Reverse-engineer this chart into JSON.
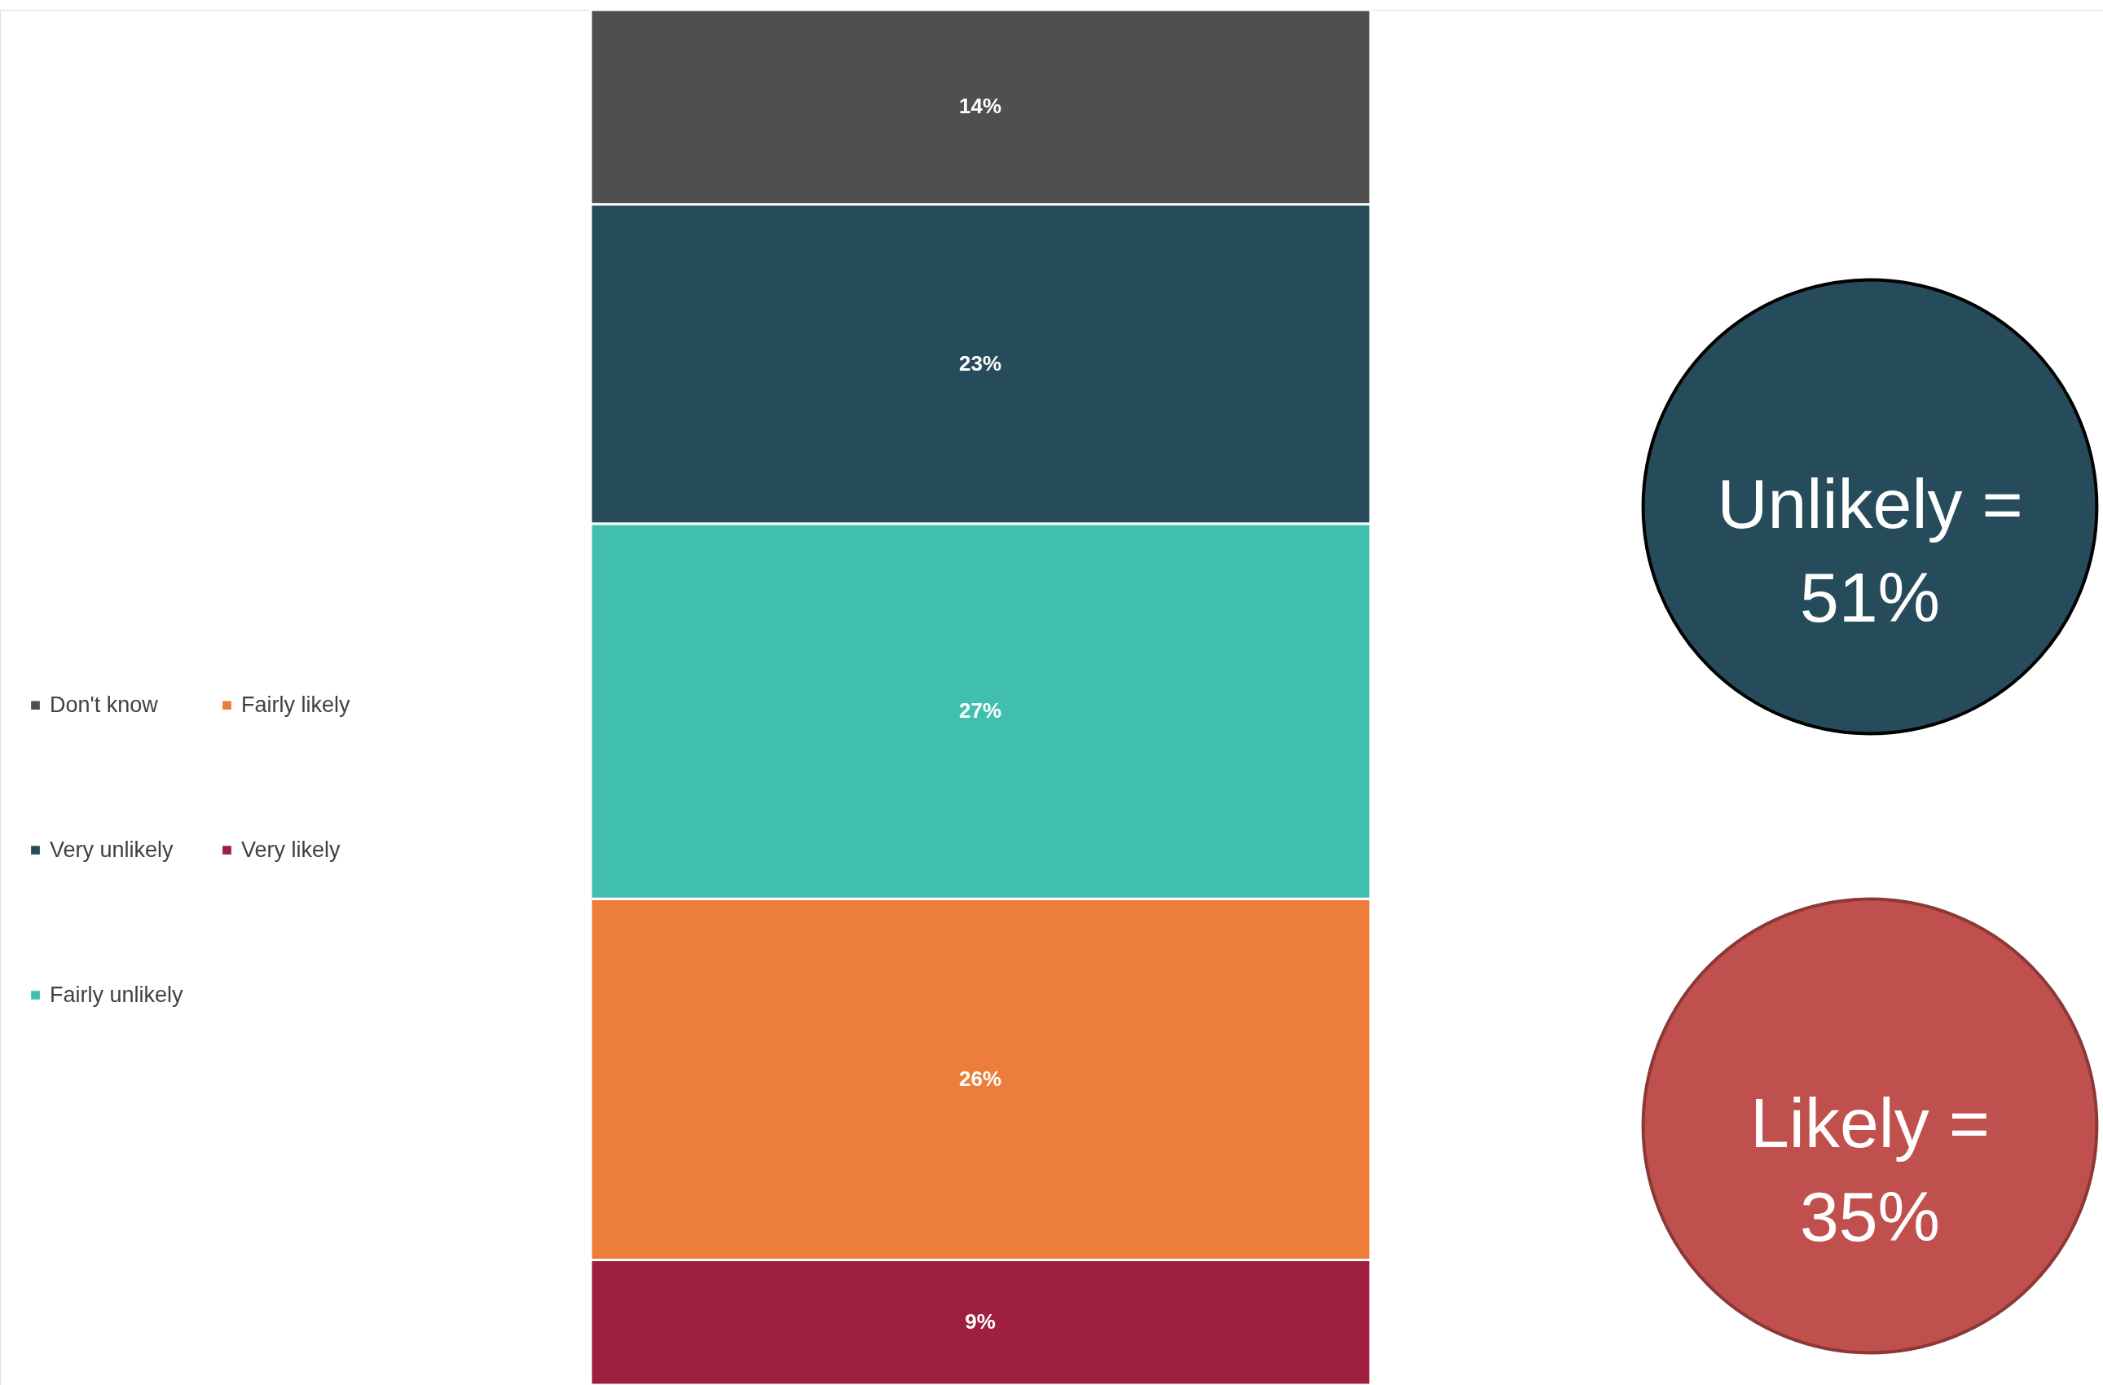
{
  "chart_data": {
    "type": "bar",
    "stacked": true,
    "categories": [
      null
    ],
    "legend": "left",
    "data_labels": true,
    "series": [
      {
        "name": "Very likely",
        "color": "#9e1f3e",
        "values": [
          9
        ],
        "value_labels": [
          "9%"
        ]
      },
      {
        "name": "Fairly likely",
        "color": "#ed7d3b",
        "values": [
          26
        ],
        "value_labels": [
          "26%"
        ]
      },
      {
        "name": "Fairly unlikely",
        "color": "#40bfaf",
        "values": [
          27
        ],
        "value_labels": [
          "27%"
        ]
      },
      {
        "name": "Very unlikely",
        "color": "#264b5a",
        "values": [
          23
        ],
        "value_labels": [
          "23%"
        ]
      },
      {
        "name": "Don't know",
        "color": "#4f4f4f",
        "values": [
          14
        ],
        "value_labels": [
          "14%"
        ]
      }
    ],
    "annotations": [
      "Unlikely = 51%",
      "Likely = 35%"
    ]
  }
}
